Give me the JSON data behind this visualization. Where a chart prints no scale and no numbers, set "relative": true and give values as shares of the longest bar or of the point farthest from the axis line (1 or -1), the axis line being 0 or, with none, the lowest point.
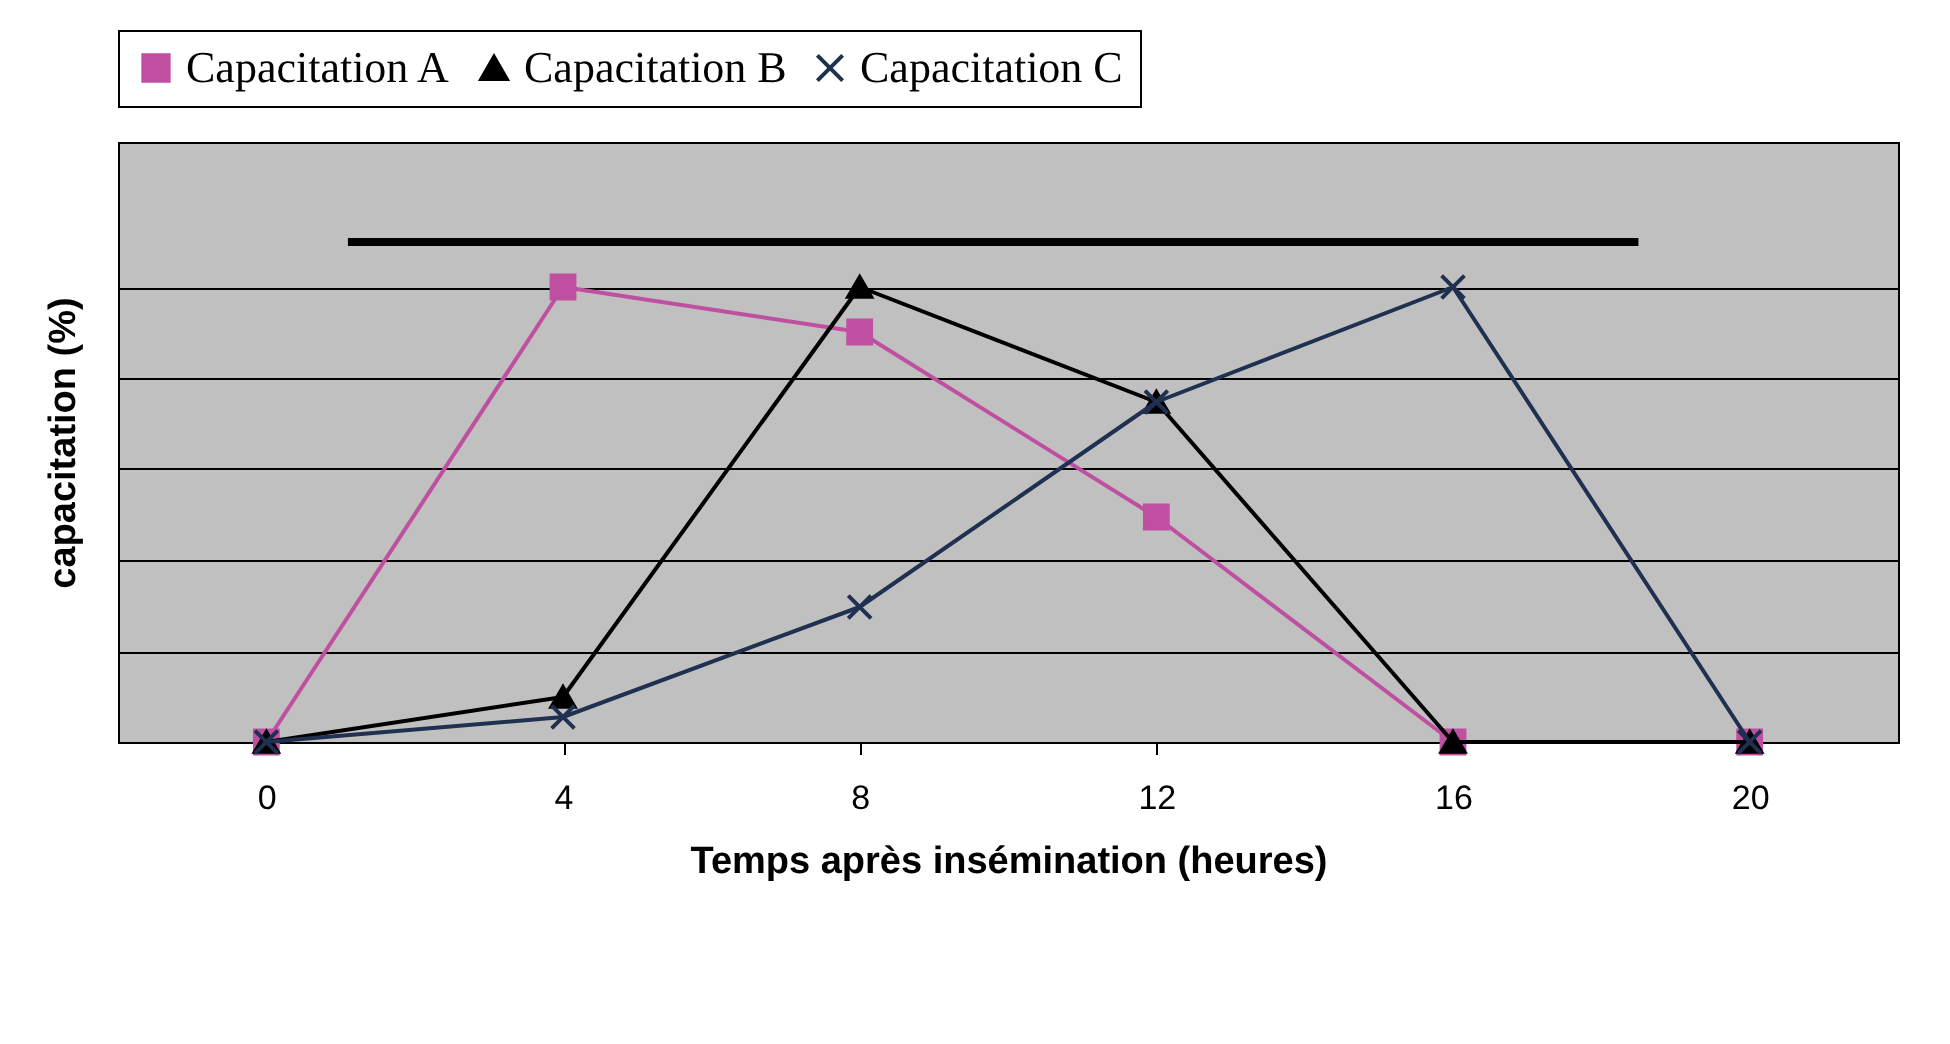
{
  "chart_data": {
    "type": "line",
    "relative": true,
    "xlabel": "Temps après insémination (heures)",
    "ylabel": "capacitation (%)",
    "xlim": [
      -2,
      22
    ],
    "xticks": [
      0,
      4,
      8,
      12,
      16,
      20
    ],
    "grid": "y",
    "legend": "top",
    "line_style": "solid",
    "series": [
      {
        "name": "Capacitation A",
        "color": "#bf4fa0",
        "marker": "square",
        "x": [
          0,
          4,
          8,
          12,
          16,
          20
        ],
        "values": [
          0,
          0.91,
          0.82,
          0.45,
          0,
          0
        ]
      },
      {
        "name": "Capacitation B",
        "color": "#000000",
        "marker": "triangle",
        "x": [
          0,
          4,
          8,
          12,
          16,
          20
        ],
        "values": [
          0,
          0.09,
          0.91,
          0.68,
          0,
          0
        ]
      },
      {
        "name": "Capacitation C",
        "color": "#1f3050",
        "marker": "cross",
        "x": [
          0,
          4,
          8,
          12,
          16,
          20
        ],
        "values": [
          0,
          0.05,
          0.27,
          0.68,
          0.91,
          0
        ]
      },
      {
        "color": "#000000",
        "marker": "none",
        "x": [
          1.1,
          18.5
        ],
        "values": [
          1,
          1
        ]
      }
    ]
  }
}
